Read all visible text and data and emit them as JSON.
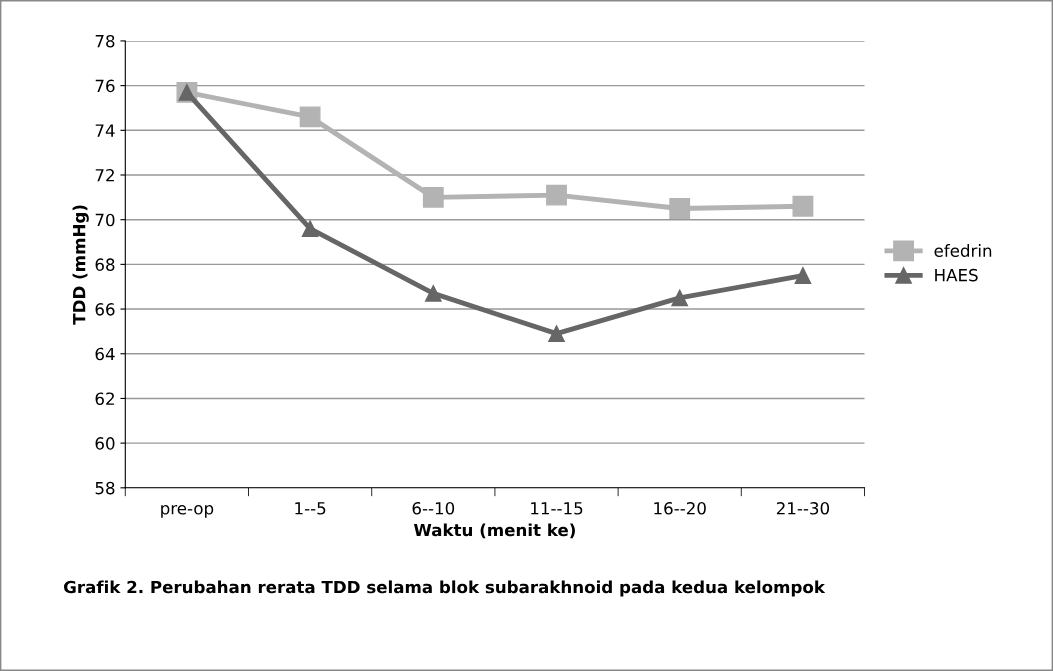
{
  "chart_data": {
    "type": "line",
    "xlabel": "Waktu (menit ke)",
    "ylabel": "TDD (mmHg)",
    "categories": [
      "pre-op",
      "1--5",
      "6--10",
      "11--15",
      "16--20",
      "21--30"
    ],
    "series": [
      {
        "name": "efedrin",
        "color": "#b3b3b3",
        "marker": "square",
        "values": [
          75.7,
          74.6,
          71.0,
          71.1,
          70.5,
          70.6
        ]
      },
      {
        "name": "HAES",
        "color": "#666666",
        "marker": "triangle",
        "values": [
          75.7,
          69.6,
          66.7,
          64.9,
          66.5,
          67.5
        ]
      }
    ],
    "ylim": [
      58,
      78
    ],
    "yticks": [
      58,
      60,
      62,
      64,
      66,
      68,
      70,
      72,
      74,
      76,
      78
    ],
    "grid": "y",
    "legend": "right",
    "line_style": "solid",
    "annotations": [
      "Grafik 2. Perubahan rerata TDD selama blok subarakhnoid pada kedua kelompok"
    ]
  }
}
